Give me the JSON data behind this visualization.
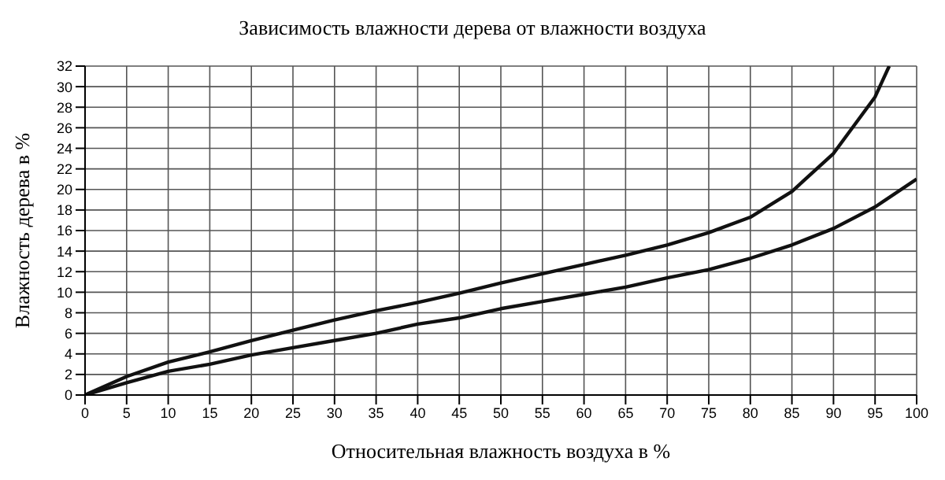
{
  "chart_data": {
    "type": "line",
    "title": "Зависимость влажности дерева от влажности воздуха",
    "xlabel": "Относительная влажность воздуха в %",
    "ylabel": "Влажность дерева в %",
    "series": [
      {
        "color": "#111111",
        "x": [
          0,
          5,
          10,
          15,
          20,
          25,
          30,
          35,
          40,
          45,
          50,
          55,
          60,
          65,
          70,
          75,
          80,
          85,
          90,
          95,
          96.7
        ],
        "values": [
          0,
          1.8,
          3.2,
          4.2,
          5.3,
          6.3,
          7.3,
          8.2,
          9,
          9.9,
          10.9,
          11.8,
          12.7,
          13.6,
          14.6,
          15.8,
          17.3,
          19.8,
          23.5,
          29,
          32
        ]
      },
      {
        "color": "#111111",
        "x": [
          0,
          5,
          10,
          15,
          20,
          25,
          30,
          35,
          40,
          45,
          50,
          55,
          60,
          65,
          70,
          75,
          80,
          85,
          90,
          95,
          100
        ],
        "values": [
          0,
          1.2,
          2.3,
          3,
          3.9,
          4.6,
          5.3,
          6,
          6.9,
          7.5,
          8.4,
          9.1,
          9.8,
          10.5,
          11.4,
          12.2,
          13.3,
          14.6,
          16.2,
          18.3,
          21
        ]
      }
    ],
    "xlim": [
      0,
      100
    ],
    "xticks": [
      0,
      5,
      10,
      15,
      20,
      25,
      30,
      35,
      40,
      45,
      50,
      55,
      60,
      65,
      70,
      75,
      80,
      85,
      90,
      95,
      100
    ],
    "ylim": [
      0,
      32
    ],
    "yticks": [
      0,
      2,
      4,
      6,
      8,
      10,
      12,
      14,
      16,
      18,
      20,
      22,
      24,
      26,
      28,
      30,
      32
    ],
    "grid": true,
    "marker": "none",
    "line_style": "solid"
  }
}
